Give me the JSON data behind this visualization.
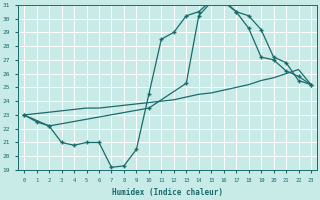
{
  "xlabel": "Humidex (Indice chaleur)",
  "xlim": [
    -0.5,
    23.5
  ],
  "ylim": [
    19,
    31
  ],
  "yticks": [
    19,
    20,
    21,
    22,
    23,
    24,
    25,
    26,
    27,
    28,
    29,
    30,
    31
  ],
  "xticks": [
    0,
    1,
    2,
    3,
    4,
    5,
    6,
    7,
    8,
    9,
    10,
    11,
    12,
    13,
    14,
    15,
    16,
    17,
    18,
    19,
    20,
    21,
    22,
    23
  ],
  "bg_color": "#c8ebe8",
  "grid_color": "#ffffff",
  "line_color": "#1a6b6b",
  "line1_x": [
    0,
    1,
    2,
    3,
    4,
    5,
    6,
    7,
    8,
    9,
    10,
    11,
    12,
    13,
    14,
    15,
    16,
    17,
    18,
    19,
    20,
    21,
    22,
    23
  ],
  "line1_y": [
    23.0,
    22.5,
    22.2,
    21.0,
    20.8,
    21.0,
    21.0,
    19.2,
    19.3,
    20.5,
    24.5,
    28.5,
    29.0,
    30.2,
    30.5,
    31.3,
    31.3,
    30.5,
    29.3,
    27.2,
    27.0,
    26.2,
    25.8,
    25.2
  ],
  "line2_x": [
    0,
    1,
    2,
    3,
    4,
    5,
    6,
    7,
    8,
    9,
    10,
    11,
    12,
    13,
    14,
    15,
    16,
    17,
    18,
    19,
    20,
    21,
    22,
    23
  ],
  "line2_y": [
    23.0,
    23.1,
    23.2,
    23.3,
    23.4,
    23.5,
    23.5,
    23.6,
    23.7,
    23.8,
    23.9,
    24.0,
    24.1,
    24.3,
    24.5,
    24.6,
    24.8,
    25.0,
    25.2,
    25.5,
    25.7,
    26.0,
    26.3,
    25.2
  ],
  "line3_x": [
    0,
    2,
    10,
    13,
    14,
    15,
    16,
    17,
    18,
    19,
    20,
    21,
    22,
    23
  ],
  "line3_y": [
    23.0,
    22.2,
    23.5,
    25.3,
    30.2,
    31.2,
    31.2,
    30.5,
    30.2,
    29.2,
    27.2,
    26.8,
    25.5,
    25.2
  ],
  "marker_style": "+",
  "marker_size": 3.5,
  "linewidth": 0.9
}
